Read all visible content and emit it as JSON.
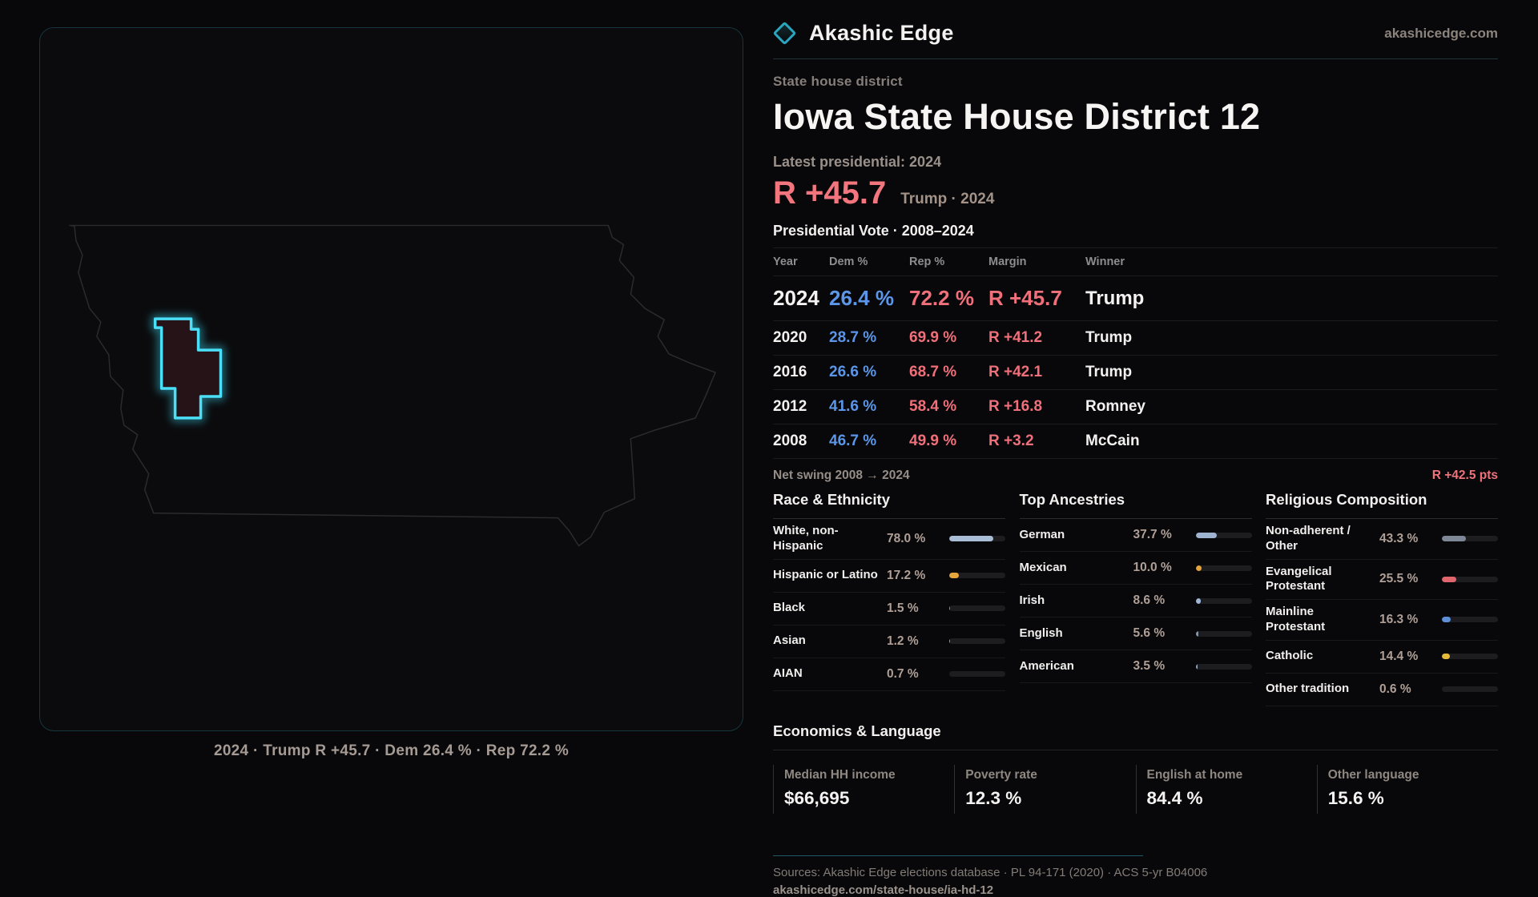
{
  "brand": {
    "name": "Akashic Edge",
    "site": "akashicedge.com",
    "logo_icon": "diamond-icon",
    "accent_teal": "#2ba4bd"
  },
  "page": {
    "kicker": "State house district",
    "title": "Iowa State House District 12",
    "latest_label": "Latest presidential: 2024",
    "headline_margin": "R +45.7",
    "headline_detail": "Trump · 2024",
    "margin_color": "#f3757d",
    "dem_color": "#5c96e8",
    "rep_color": "#ef707a"
  },
  "map": {
    "state": "Iowa",
    "district": "House District 12",
    "caption": "2024 · Trump R +45.7 · Dem 26.4 % · Rep 72.2 %",
    "district_outline_color": "#3fd9f2",
    "district_fill_color": "#261318"
  },
  "results_table": {
    "title": "Presidential Vote · 2008–2024",
    "columns": [
      "Year",
      "Dem %",
      "Rep %",
      "Margin",
      "Winner"
    ],
    "rows": [
      {
        "year": "2024",
        "dem": "26.4 %",
        "rep": "72.2 %",
        "margin": "R +45.7",
        "winner": "Trump",
        "highlight": true
      },
      {
        "year": "2020",
        "dem": "28.7 %",
        "rep": "69.9 %",
        "margin": "R +41.2",
        "winner": "Trump",
        "highlight": false
      },
      {
        "year": "2016",
        "dem": "26.6 %",
        "rep": "68.7 %",
        "margin": "R +42.1",
        "winner": "Trump",
        "highlight": false
      },
      {
        "year": "2012",
        "dem": "41.6 %",
        "rep": "58.4 %",
        "margin": "R +16.8",
        "winner": "Romney",
        "highlight": false
      },
      {
        "year": "2008",
        "dem": "46.7 %",
        "rep": "49.9 %",
        "margin": "R +3.2",
        "winner": "McCain",
        "highlight": false
      }
    ],
    "net_swing_label": "Net swing 2008 → 2024",
    "net_swing_value": "R +42.5 pts"
  },
  "demographics": {
    "race": {
      "title": "Race & Ethnicity",
      "rows": [
        {
          "label": "White, non-Hispanic",
          "value": "78.0 %",
          "pct": 78.0,
          "color": "#a9bdd6"
        },
        {
          "label": "Hispanic or Latino",
          "value": "17.2 %",
          "pct": 17.2,
          "color": "#e5a43c"
        },
        {
          "label": "Black",
          "value": "1.5 %",
          "pct": 1.5,
          "color": "#8f86e0"
        },
        {
          "label": "Asian",
          "value": "1.2 %",
          "pct": 1.2,
          "color": "#46c9a2"
        },
        {
          "label": "AIAN",
          "value": "0.7 %",
          "pct": 0.7,
          "color": "#9aa3b0"
        }
      ]
    },
    "ancestries": {
      "title": "Top Ancestries",
      "rows": [
        {
          "label": "German",
          "value": "37.7 %",
          "pct": 37.7,
          "color": "#9db3cf"
        },
        {
          "label": "Mexican",
          "value": "10.0 %",
          "pct": 10.0,
          "color": "#e6a33c"
        },
        {
          "label": "Irish",
          "value": "8.6 %",
          "pct": 8.6,
          "color": "#9fb6d9"
        },
        {
          "label": "English",
          "value": "5.6 %",
          "pct": 5.6,
          "color": "#7e95b5"
        },
        {
          "label": "American",
          "value": "3.5 %",
          "pct": 3.5,
          "color": "#94a3b8"
        }
      ]
    },
    "religion": {
      "title": "Religious Composition",
      "rows": [
        {
          "label": "Non-adherent / Other",
          "value": "43.3 %",
          "pct": 43.3,
          "color": "#7e8795"
        },
        {
          "label": "Evangelical Protestant",
          "value": "25.5 %",
          "pct": 25.5,
          "color": "#e0656d"
        },
        {
          "label": "Mainline Protestant",
          "value": "16.3 %",
          "pct": 16.3,
          "color": "#5d8ed8"
        },
        {
          "label": "Catholic",
          "value": "14.4 %",
          "pct": 14.4,
          "color": "#e7b93a"
        },
        {
          "label": "Other tradition",
          "value": "0.6 %",
          "pct": 0.6,
          "color": "#3a3a3d"
        }
      ]
    }
  },
  "economics": {
    "title": "Economics & Language",
    "stats": [
      {
        "label": "Median HH income",
        "value": "$66,695"
      },
      {
        "label": "Poverty rate",
        "value": "12.3 %"
      },
      {
        "label": "English at home",
        "value": "84.4 %"
      },
      {
        "label": "Other language",
        "value": "15.6 %"
      }
    ]
  },
  "footer": {
    "sources": "Sources: Akashic Edge elections database · PL 94-171 (2020) · ACS 5-yr B04006",
    "permalink": "akashicedge.com/state-house/ia-hd-12"
  }
}
